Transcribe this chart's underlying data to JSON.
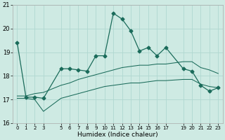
{
  "xlabel": "Humidex (Indice chaleur)",
  "bg_color": "#ceeae3",
  "grid_color": "#b0d8d0",
  "line_color": "#1a6b5a",
  "ylim": [
    16,
    21
  ],
  "xlim": [
    -0.5,
    23.5
  ],
  "yticks": [
    16,
    17,
    18,
    19,
    20,
    21
  ],
  "xtick_positions": [
    0,
    1,
    2,
    3,
    5,
    6,
    7,
    8,
    9,
    10,
    11,
    12,
    13,
    14,
    15,
    16,
    17,
    19,
    20,
    21,
    22,
    23
  ],
  "xtick_labels": [
    "0",
    "1",
    "2",
    "3",
    "5",
    "6",
    "7",
    "8",
    "9",
    "10",
    "11",
    "12",
    "13",
    "14",
    "15",
    "16",
    "17",
    "19",
    "20",
    "21",
    "22",
    "23"
  ],
  "main_x": [
    0,
    1,
    2,
    3,
    5,
    6,
    7,
    8,
    9,
    10,
    11,
    12,
    13,
    14,
    15,
    16,
    17,
    19,
    20,
    21,
    22,
    23
  ],
  "main_y": [
    19.4,
    17.1,
    17.1,
    17.05,
    18.3,
    18.3,
    18.25,
    18.2,
    18.85,
    18.85,
    20.65,
    20.4,
    19.9,
    19.05,
    19.2,
    18.85,
    19.2,
    18.3,
    18.2,
    17.6,
    17.35,
    17.5
  ],
  "low_x": [
    0,
    1,
    2,
    3,
    5,
    6,
    7,
    8,
    9,
    10,
    11,
    12,
    13,
    14,
    15,
    16,
    17,
    19,
    20,
    21,
    22,
    23
  ],
  "low_y": [
    17.05,
    17.05,
    17.0,
    16.5,
    17.05,
    17.15,
    17.25,
    17.35,
    17.45,
    17.55,
    17.6,
    17.65,
    17.7,
    17.7,
    17.75,
    17.8,
    17.8,
    17.85,
    17.85,
    17.65,
    17.55,
    17.5
  ],
  "high_x": [
    0,
    1,
    2,
    3,
    5,
    6,
    7,
    8,
    9,
    10,
    11,
    12,
    13,
    14,
    15,
    16,
    17,
    19,
    20,
    21,
    22,
    23
  ],
  "high_y": [
    17.15,
    17.15,
    17.25,
    17.3,
    17.6,
    17.7,
    17.85,
    17.95,
    18.05,
    18.15,
    18.25,
    18.35,
    18.4,
    18.45,
    18.45,
    18.5,
    18.5,
    18.6,
    18.6,
    18.35,
    18.25,
    18.1
  ],
  "marker": "D",
  "markersize": 2.5,
  "linewidth_main": 0.9,
  "linewidth_band": 0.75,
  "ylabel_fontsize": 6,
  "xlabel_fontsize": 6.5,
  "ytick_fontsize": 6,
  "xtick_fontsize": 5
}
